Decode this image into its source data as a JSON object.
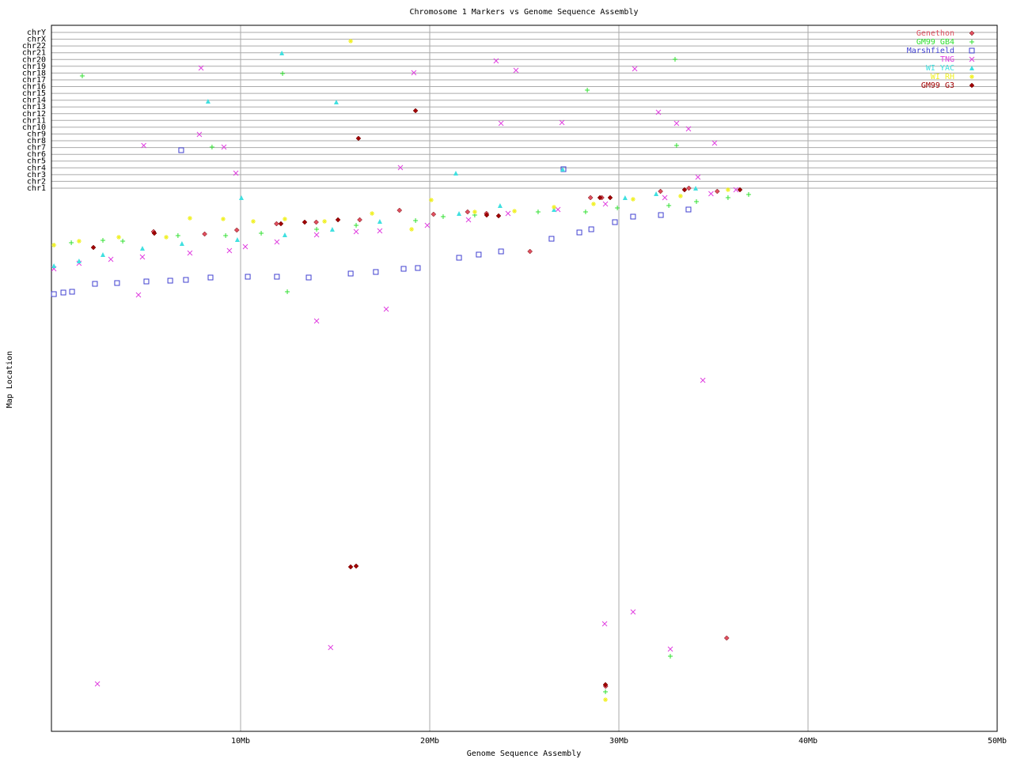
{
  "chart_data": {
    "type": "scatter",
    "title": "Chromosome 1 Markers vs Genome Sequence Assembly",
    "xlabel": "Genome Sequence Assembly",
    "ylabel": "Map Location",
    "xlim": [
      0,
      50
    ],
    "xticks": [
      {
        "value": 10,
        "label": "10Mb"
      },
      {
        "value": 20,
        "label": "20Mb"
      },
      {
        "value": 30,
        "label": "30Mb"
      },
      {
        "value": 40,
        "label": "40Mb"
      },
      {
        "value": 50,
        "label": "50Mb"
      }
    ],
    "ylim": [
      0,
      893
    ],
    "yticks": [
      {
        "value": 687.0,
        "label": "chr1"
      },
      {
        "value": 695.6,
        "label": "chr2"
      },
      {
        "value": 704.1,
        "label": "chr3"
      },
      {
        "value": 712.7,
        "label": "chr4"
      },
      {
        "value": 721.3,
        "label": "chr5"
      },
      {
        "value": 729.8,
        "label": "chr6"
      },
      {
        "value": 738.4,
        "label": "chr7"
      },
      {
        "value": 747.0,
        "label": "chr8"
      },
      {
        "value": 755.5,
        "label": "chr9"
      },
      {
        "value": 764.1,
        "label": "chr10"
      },
      {
        "value": 772.7,
        "label": "chr11"
      },
      {
        "value": 781.2,
        "label": "chr12"
      },
      {
        "value": 789.8,
        "label": "chr13"
      },
      {
        "value": 798.3,
        "label": "chr14"
      },
      {
        "value": 806.9,
        "label": "chr15"
      },
      {
        "value": 815.5,
        "label": "chr16"
      },
      {
        "value": 824.0,
        "label": "chr17"
      },
      {
        "value": 832.6,
        "label": "chr18"
      },
      {
        "value": 841.2,
        "label": "chr19"
      },
      {
        "value": 849.7,
        "label": "chr20"
      },
      {
        "value": 858.3,
        "label": "chr21"
      },
      {
        "value": 866.9,
        "label": "chr22"
      },
      {
        "value": 875.4,
        "label": "chrX"
      },
      {
        "value": 884.0,
        "label": "chrY"
      }
    ],
    "grid": true,
    "legend": "top-right",
    "series": [
      {
        "name": "Genethon",
        "color": "#e05060",
        "marker": "diamond",
        "x": [
          5.4,
          8.1,
          9.8,
          11.9,
          14.0,
          16.3,
          18.4,
          20.2,
          22.0,
          23.0,
          25.3,
          28.5,
          29.1,
          32.2,
          33.7,
          35.2,
          35.7,
          29.3
        ],
        "values": [
          632,
          629,
          634,
          642,
          644,
          647,
          659,
          654,
          657,
          655,
          607,
          675,
          675,
          683,
          687,
          683,
          118,
          57
        ]
      },
      {
        "name": "GM99 GB4",
        "color": "#30e030",
        "marker": "plus",
        "x": [
          1.63,
          0.13,
          1.05,
          2.72,
          3.77,
          6.69,
          8.49,
          9.21,
          11.09,
          12.22,
          12.47,
          14.02,
          16.11,
          19.25,
          20.71,
          22.38,
          25.73,
          28.33,
          28.24,
          29.92,
          32.97,
          33.05,
          32.64,
          34.1,
          35.77,
          36.86,
          32.72,
          29.29
        ],
        "values": [
          829,
          615,
          618,
          621,
          620,
          627,
          739,
          627,
          630,
          832,
          556,
          635,
          640,
          646,
          651,
          653,
          657,
          811,
          657,
          662,
          850,
          741,
          665,
          670,
          675,
          679,
          95,
          50
        ]
      },
      {
        "name": "Marshfield",
        "color": "#4040d0",
        "marker": "square",
        "x": [
          0.13,
          0.63,
          1.09,
          2.3,
          3.47,
          5.02,
          6.28,
          7.11,
          8.41,
          6.86,
          10.38,
          11.92,
          13.6,
          15.82,
          17.15,
          18.62,
          19.37,
          21.55,
          22.59,
          23.77,
          26.44,
          27.91,
          28.54,
          29.79,
          30.75,
          32.22,
          33.68,
          27.07
        ],
        "values": [
          553,
          555,
          556,
          566,
          567,
          569,
          570,
          571,
          574,
          735,
          575,
          575,
          574,
          579,
          581,
          585,
          586,
          599,
          603,
          607,
          623,
          631,
          635,
          644,
          651,
          653,
          660,
          711
        ]
      },
      {
        "name": "TNG",
        "color": "#e040e0",
        "marker": "cross",
        "x": [
          0.13,
          1.46,
          3.14,
          4.81,
          7.32,
          9.41,
          10.25,
          11.92,
          14.02,
          16.11,
          17.36,
          19.87,
          22.05,
          24.14,
          26.78,
          29.29,
          32.43,
          34.87,
          36.19,
          2.43,
          4.6,
          4.88,
          7.91,
          7.82,
          9.12,
          9.75,
          14.02,
          14.76,
          17.7,
          18.45,
          19.16,
          23.51,
          23.77,
          24.56,
          26.99,
          29.25,
          30.75,
          30.84,
          32.09,
          33.05,
          33.68,
          34.18,
          34.44,
          35.06,
          32.72
        ],
        "values": [
          585,
          592,
          597,
          600,
          605,
          608,
          613,
          619,
          628,
          632,
          633,
          640,
          647,
          655,
          660,
          667,
          675,
          680,
          685,
          60,
          552,
          741,
          839,
          755,
          739,
          706,
          519,
          106,
          534,
          713,
          833,
          848,
          769,
          836,
          770,
          136,
          151,
          838,
          783,
          769,
          762,
          701,
          444,
          744,
          104
        ]
      },
      {
        "name": "WI YAC",
        "color": "#40e0e0",
        "marker": "triangle",
        "x": [
          0.13,
          1.46,
          2.72,
          4.81,
          6.9,
          8.28,
          10.04,
          9.83,
          12.18,
          12.34,
          15.06,
          14.85,
          17.36,
          21.38,
          21.55,
          23.72,
          27.03,
          26.57,
          30.33,
          31.97,
          34.06
        ],
        "values": [
          589,
          595,
          603,
          611,
          617,
          797,
          675,
          622,
          858,
          628,
          796,
          635,
          645,
          706,
          655,
          665,
          711,
          660,
          675,
          680,
          687
        ]
      },
      {
        "name": "WI RH",
        "color": "#f0f020",
        "marker": "star",
        "x": [
          0.13,
          1.46,
          3.56,
          6.07,
          7.32,
          9.08,
          10.67,
          12.34,
          14.44,
          15.82,
          16.95,
          19.04,
          20.08,
          22.38,
          24.48,
          26.57,
          28.66,
          30.75,
          33.26,
          35.77,
          29.29
        ],
        "values": [
          615,
          620,
          625,
          625,
          649,
          648,
          645,
          648,
          645,
          873,
          655,
          635,
          672,
          657,
          658,
          663,
          667,
          673,
          677,
          685,
          40
        ]
      },
      {
        "name": "GM99 G3",
        "color": "#a00000",
        "marker": "diamond",
        "x": [
          2.22,
          5.44,
          12.13,
          13.39,
          15.15,
          16.23,
          15.82,
          16.11,
          19.25,
          23.01,
          23.64,
          29.0,
          29.54,
          33.47,
          36.4,
          29.29
        ],
        "values": [
          612,
          630,
          642,
          644,
          647,
          750,
          208,
          209,
          785,
          653,
          652,
          675,
          675,
          685,
          685,
          59
        ]
      }
    ]
  }
}
